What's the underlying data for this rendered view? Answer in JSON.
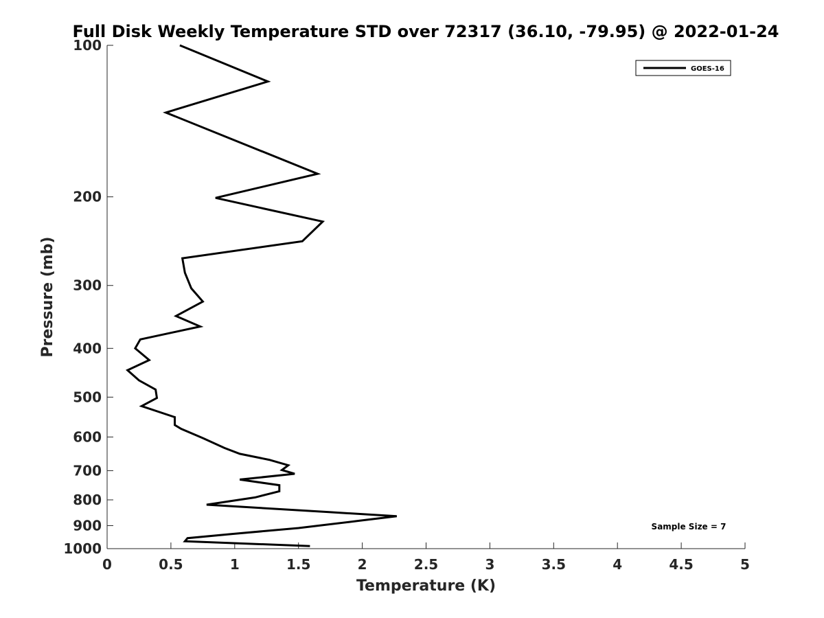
{
  "chart_data": {
    "type": "line",
    "title": "Full Disk Weekly Temperature STD over 72317 (36.10, -79.95) @ 2022-01-24",
    "xlabel": "Temperature (K)",
    "ylabel": "Pressure (mb)",
    "xlim": [
      0,
      5
    ],
    "ylim": [
      100,
      1000
    ],
    "yscale": "log",
    "y_reversed": true,
    "grid": false,
    "legend_position": "top-right",
    "x_ticks": [
      "0",
      "0.5",
      "1",
      "1.5",
      "2",
      "2.5",
      "3",
      "3.5",
      "4",
      "4.5",
      "5"
    ],
    "x_tick_values": [
      0,
      0.5,
      1,
      1.5,
      2,
      2.5,
      3,
      3.5,
      4,
      4.5,
      5
    ],
    "y_ticks": [
      "100",
      "200",
      "300",
      "400",
      "500",
      "600",
      "700",
      "800",
      "900",
      "1000"
    ],
    "y_tick_values": [
      100,
      200,
      300,
      400,
      500,
      600,
      700,
      800,
      900,
      1000
    ],
    "annotation": "Sample Size = 7",
    "series": [
      {
        "name": "GOES-16",
        "color": "#000000",
        "points": [
          [
            0.57,
            100
          ],
          [
            1.26,
            118
          ],
          [
            0.46,
            136
          ],
          [
            1.65,
            180
          ],
          [
            0.85,
            201
          ],
          [
            1.69,
            224
          ],
          [
            1.53,
            245
          ],
          [
            0.59,
            265
          ],
          [
            0.61,
            283
          ],
          [
            0.66,
            304
          ],
          [
            0.75,
            323
          ],
          [
            0.54,
            345
          ],
          [
            0.73,
            362
          ],
          [
            0.26,
            384
          ],
          [
            0.22,
            400
          ],
          [
            0.33,
            422
          ],
          [
            0.16,
            442
          ],
          [
            0.25,
            463
          ],
          [
            0.38,
            483
          ],
          [
            0.39,
            502
          ],
          [
            0.27,
            521
          ],
          [
            0.53,
            548
          ],
          [
            0.53,
            568
          ],
          [
            0.58,
            578
          ],
          [
            0.75,
            603
          ],
          [
            0.92,
            631
          ],
          [
            1.04,
            648
          ],
          [
            1.27,
            666
          ],
          [
            1.42,
            683
          ],
          [
            1.37,
            698
          ],
          [
            1.47,
            710
          ],
          [
            1.04,
            729
          ],
          [
            1.35,
            748
          ],
          [
            1.35,
            769
          ],
          [
            1.16,
            791
          ],
          [
            0.78,
            818
          ],
          [
            1.74,
            846
          ],
          [
            2.27,
            862
          ],
          [
            1.98,
            880
          ],
          [
            1.5,
            910
          ],
          [
            0.98,
            935
          ],
          [
            0.63,
            953
          ],
          [
            0.61,
            967
          ],
          [
            1.59,
            988
          ]
        ]
      }
    ]
  }
}
